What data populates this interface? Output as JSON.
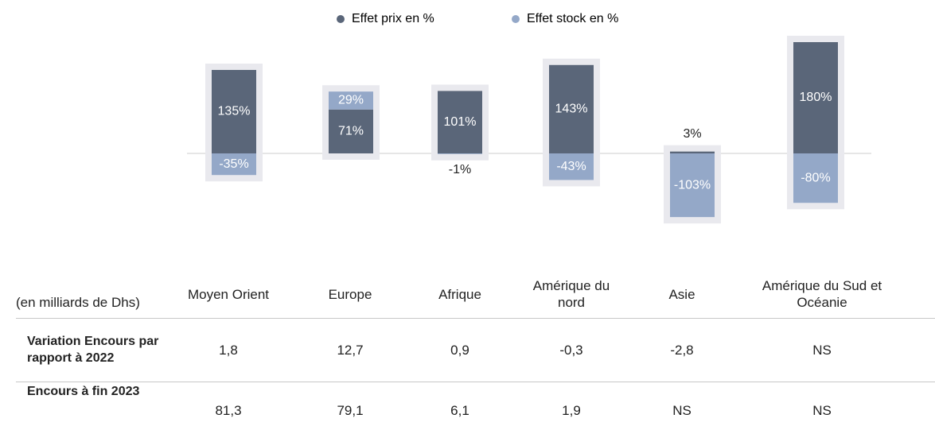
{
  "chart_data": {
    "type": "bar",
    "stacked": true,
    "categories": [
      "Moyen Orient",
      "Europe",
      "Afrique",
      "Amérique du nord",
      "Asie",
      "Amérique du Sud et Océanie"
    ],
    "series": [
      {
        "name": "Effet prix en %",
        "color": "#5a6679",
        "values": [
          135,
          71,
          101,
          143,
          3,
          180
        ],
        "value_labels": [
          "135%",
          "71%",
          "101%",
          "143%",
          "3%",
          "180%"
        ]
      },
      {
        "name": "Effet stock en %",
        "color": "#94a8c8",
        "values": [
          -35,
          29,
          -1,
          -43,
          -103,
          -80
        ],
        "value_labels": [
          "-35%",
          "29%",
          "-1%",
          "-43%",
          "-103%",
          "-80%"
        ]
      }
    ]
  },
  "table": {
    "header_label": "(en milliards de Dhs)",
    "rows": [
      [
        "Variation Encours par rapport à 2022",
        "1,8",
        "12,7",
        "0,9",
        "-0,3",
        "-2,8",
        "NS"
      ],
      [
        "Encours à fin 2023",
        "81,3",
        "79,1",
        "6,1",
        "1,9",
        "NS",
        "NS"
      ]
    ]
  }
}
